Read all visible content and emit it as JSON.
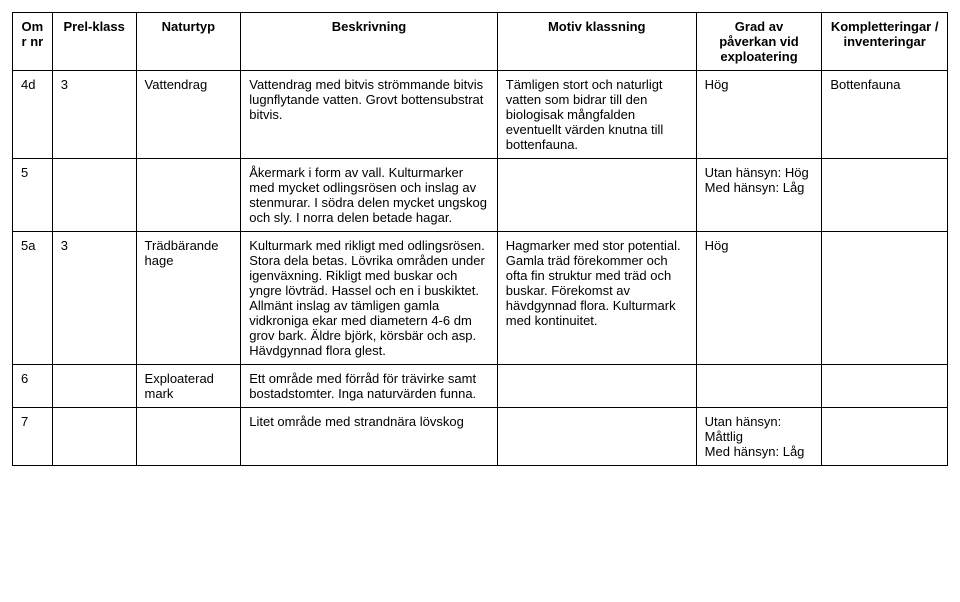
{
  "table": {
    "headers": {
      "omr": "Omr nr",
      "prel": "Prel-klass",
      "naturtyp": "Naturtyp",
      "beskrivning": "Beskrivning",
      "motiv": "Motiv klassning",
      "grad": "Grad av påverkan vid exploatering",
      "kompl": "Kompletteringar / inventeringar"
    },
    "rows": [
      {
        "omr": "4d",
        "prel": "3",
        "naturtyp": "Vattendrag",
        "beskrivning": "Vattendrag med bitvis strömmande bitvis lugnflytande vatten. Grovt bottensubstrat bitvis.",
        "motiv": "Tämligen stort och naturligt vatten som bidrar till den biologisak mångfalden eventuellt värden knutna till bottenfauna.",
        "grad": "Hög",
        "kompl": "Bottenfauna"
      },
      {
        "omr": "5",
        "prel": "",
        "naturtyp": "",
        "beskrivning": "Åkermark i form av vall. Kulturmarker med mycket odlingsrösen och inslag av stenmurar. I södra delen mycket ungskog och sly. I norra delen betade hagar.",
        "motiv": "",
        "grad": "Utan hänsyn: Hög\nMed hänsyn: Låg",
        "kompl": ""
      },
      {
        "omr": "5a",
        "prel": "3",
        "naturtyp": "Trädbärande hage",
        "beskrivning": "Kulturmark med rikligt med odlingsrösen. Stora dela betas. Lövrika områden under igenväxning. Rikligt med buskar och yngre lövträd. Hassel och en i buskiktet. Allmänt inslag av tämligen gamla vidkroniga ekar med diametern 4-6 dm grov bark. Äldre björk, körsbär och asp. Hävdgynnad flora glest.",
        "motiv": "Hagmarker med stor potential. Gamla träd förekommer och ofta fin struktur med träd och buskar. Förekomst av hävdgynnad flora. Kulturmark med kontinuitet.",
        "grad": "Hög",
        "kompl": ""
      },
      {
        "omr": "6",
        "prel": "",
        "naturtyp": "Exploaterad mark",
        "beskrivning": "Ett område med förråd för trävirke samt bostadstomter. Inga naturvärden funna.",
        "motiv": "",
        "grad": "",
        "kompl": ""
      },
      {
        "omr": "7",
        "prel": "",
        "naturtyp": "",
        "beskrivning": "Litet område med strandnära lövskog",
        "motiv": "",
        "grad": "Utan hänsyn: Måttlig\nMed hänsyn: Låg",
        "kompl": ""
      }
    ]
  }
}
